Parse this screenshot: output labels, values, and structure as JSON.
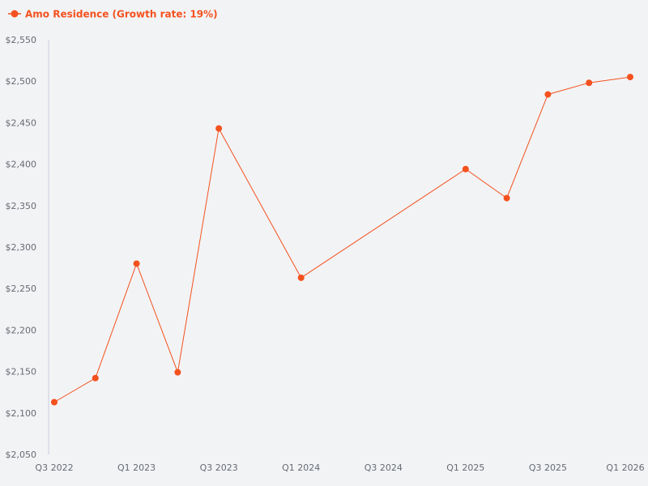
{
  "colors": {
    "background": "#f2f3f5",
    "series": "#f4511e",
    "axis": "#c9ccdb",
    "tick_text": "#666a73"
  },
  "chart_data": {
    "type": "line",
    "title": "",
    "xlabel": "",
    "ylabel": "",
    "legend": {
      "position": "top-left",
      "label": "Amo Residence (Growth rate: 19%)"
    },
    "grid": false,
    "x": [
      "Q3 2022",
      "Q4 2022",
      "Q1 2023",
      "Q2 2023",
      "Q3 2023",
      "Q4 2023",
      "Q1 2024",
      "Q2 2024",
      "Q3 2024",
      "Q4 2024",
      "Q1 2025",
      "Q2 2025",
      "Q3 2025",
      "Q4 2025",
      "Q1 2026"
    ],
    "x_tick_labels": [
      "Q3 2022",
      "Q1 2023",
      "Q3 2023",
      "Q1 2024",
      "Q3 2024",
      "Q1 2025",
      "Q3 2025",
      "Q1 2026"
    ],
    "ylim": [
      2050,
      2550
    ],
    "y_ticks": [
      2050,
      2100,
      2150,
      2200,
      2250,
      2300,
      2350,
      2400,
      2450,
      2500,
      2550
    ],
    "y_tick_labels": [
      "$2,050",
      "$2,100",
      "$2,150",
      "$2,200",
      "$2,250",
      "$2,300",
      "$2,350",
      "$2,400",
      "$2,450",
      "$2,500",
      "$2,550"
    ],
    "series": [
      {
        "name": "Amo Residence (Growth rate: 19%)",
        "points": [
          [
            "Q3 2022",
            2113
          ],
          [
            "Q4 2022",
            2142
          ],
          [
            "Q1 2023",
            2280
          ],
          [
            "Q2 2023",
            2149
          ],
          [
            "Q3 2023",
            2443
          ],
          [
            "Q1 2024",
            2263
          ],
          [
            "Q1 2025",
            2394
          ],
          [
            "Q2 2025",
            2359
          ],
          [
            "Q3 2025",
            2484
          ],
          [
            "Q4 2025",
            2498
          ],
          [
            "Q1 2026",
            2505
          ]
        ]
      }
    ]
  }
}
